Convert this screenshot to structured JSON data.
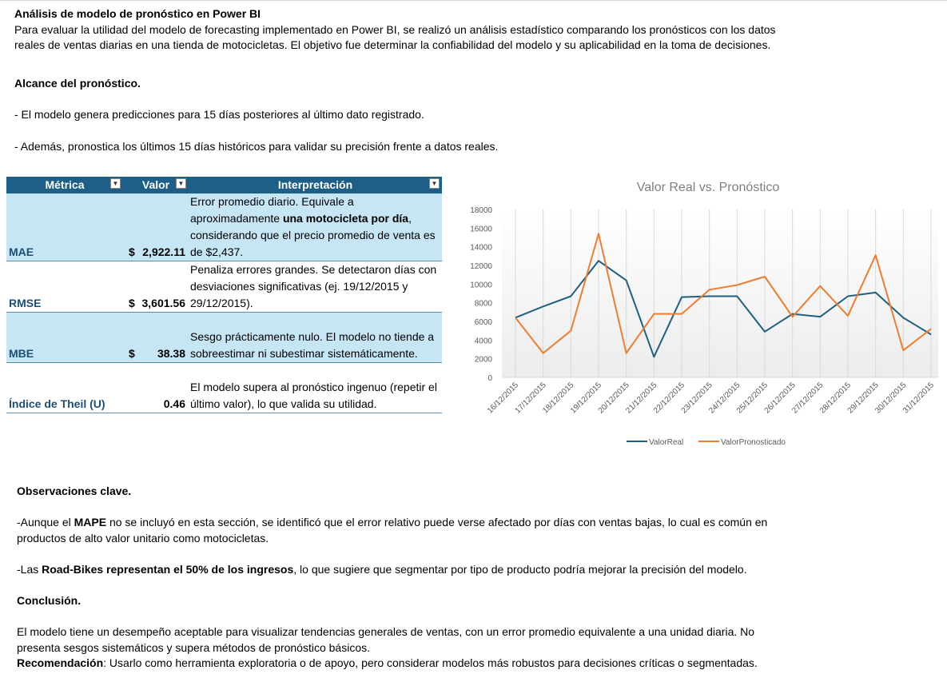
{
  "header": {
    "title": "Análisis de modelo de pronóstico en Power BI",
    "intro_line1": "Para evaluar la utilidad del modelo de forecasting implementado en Power BI, se realizó un análisis estadístico comparando los pronósticos con los datos",
    "intro_line2": "reales de ventas diarias en una tienda de motocicletas. El objetivo fue determinar la confiabilidad del modelo y su aplicabilidad en la toma de decisiones."
  },
  "scope": {
    "heading": "Alcance del pronóstico.",
    "bullet1": "- El modelo genera predicciones para 15 días posteriores al último dato registrado.",
    "bullet2": "- Además, pronostica los últimos 15 días históricos para validar su precisión frente a datos reales."
  },
  "table": {
    "headers": {
      "metric": "Métrica",
      "value": "Valor",
      "interpretation": "Interpretación"
    },
    "rows": [
      {
        "metric": "MAE",
        "currency": "$",
        "value": "2,922.11",
        "interp_part1": "Error promedio diario. Equivale a aproximadamente ",
        "interp_bold": "una motocicleta por día",
        "interp_part2": ", considerando que el precio promedio de venta es de $2,437."
      },
      {
        "metric": "RMSE",
        "currency": "$",
        "value": "3,601.56",
        "interp": "Penaliza errores grandes. Se detectaron días con desviaciones significativas (ej. 19/12/2015 y 29/12/2015)."
      },
      {
        "metric": "MBE",
        "currency": "$",
        "value": "38.38",
        "interp": "Sesgo prácticamente nulo. El modelo no tiende a sobreestimar ni subestimar sistemáticamente."
      },
      {
        "metric": "Índice de Theil (U)",
        "currency": "",
        "value": "0.46",
        "interp": "El modelo supera al pronóstico ingenuo (repetir el último valor), lo que valida su utilidad."
      }
    ]
  },
  "chart_data": {
    "type": "line",
    "title": "Valor Real vs. Pronóstico",
    "categories": [
      "16/12/2015",
      "17/12/2015",
      "18/12/2015",
      "19/12/2015",
      "20/12/2015",
      "21/12/2015",
      "22/12/2015",
      "23/12/2015",
      "24/12/2015",
      "25/12/2015",
      "26/12/2015",
      "27/12/2015",
      "28/12/2015",
      "29/12/2015",
      "30/12/2015",
      "31/12/2015"
    ],
    "series": [
      {
        "name": "ValorReal",
        "color": "#1f5f7f",
        "values": [
          6400,
          7600,
          8700,
          12500,
          10400,
          2200,
          8600,
          8700,
          8700,
          4900,
          6800,
          6500,
          8700,
          9100,
          6400,
          4600
        ]
      },
      {
        "name": "ValorPronosticado",
        "color": "#ed7d31",
        "values": [
          6400,
          2600,
          5000,
          15400,
          2600,
          6800,
          6800,
          9400,
          9900,
          10800,
          6500,
          9800,
          6600,
          13100,
          2900,
          5200
        ]
      }
    ],
    "ylim": [
      0,
      18000
    ],
    "yticks": [
      0,
      2000,
      4000,
      6000,
      8000,
      10000,
      12000,
      14000,
      16000,
      18000
    ],
    "legend_position": "bottom",
    "grid": "vertical"
  },
  "observations": {
    "heading": "Observaciones clave.",
    "p1_a": "-Aunque el ",
    "p1_b": "MAPE",
    "p1_c": " no se incluyó en esta sección, se identificó que el error relativo puede verse afectado por días con ventas bajas, lo cual es común en",
    "p1_line2": "productos de alto valor unitario como motocicletas.",
    "p2_a": "-Las ",
    "p2_b": "Road-Bikes representan el 50% de los ingresos",
    "p2_c": ", lo que sugiere que segmentar por tipo de producto podría mejorar la precisión del modelo."
  },
  "conclusion": {
    "heading": "Conclusión.",
    "line1": "El modelo tiene un desempeño aceptable para visualizar tendencias generales de ventas, con un error promedio equivalente a una unidad diaria. No",
    "line2": "presenta sesgos sistemáticos y supera métodos de pronóstico básicos.",
    "rec_label": "Recomendación",
    "rec_text": ": Usarlo como herramienta exploratoria o de apoyo, pero considerar modelos más robustos para decisiones críticas o segmentadas."
  }
}
